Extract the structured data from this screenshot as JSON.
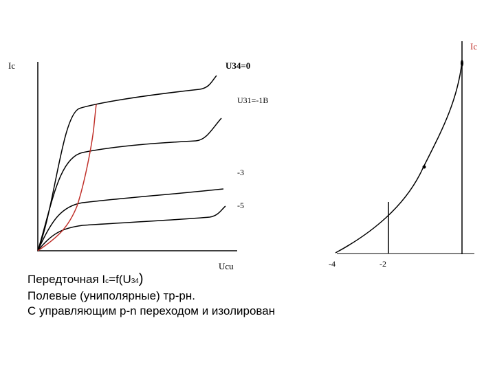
{
  "left_graph": {
    "y_axis_label": "Ic",
    "x_axis_label": "Ucu",
    "curve_labels": [
      "U34=0",
      "U31=-1B",
      "-3",
      "-5"
    ]
  },
  "right_graph": {
    "y_axis_label": "Ic",
    "x_labels": [
      "-4",
      "-2"
    ]
  },
  "caption": {
    "formula": {
      "prefix": "Передточная I",
      "sub1": "c",
      "mid": "=f(U",
      "sub2": "34",
      "suffix": ")"
    },
    "lines": [
      "Полевые (униполярные) тр-рн.",
      "С управляющим p-n переходом и изолирован"
    ]
  }
}
